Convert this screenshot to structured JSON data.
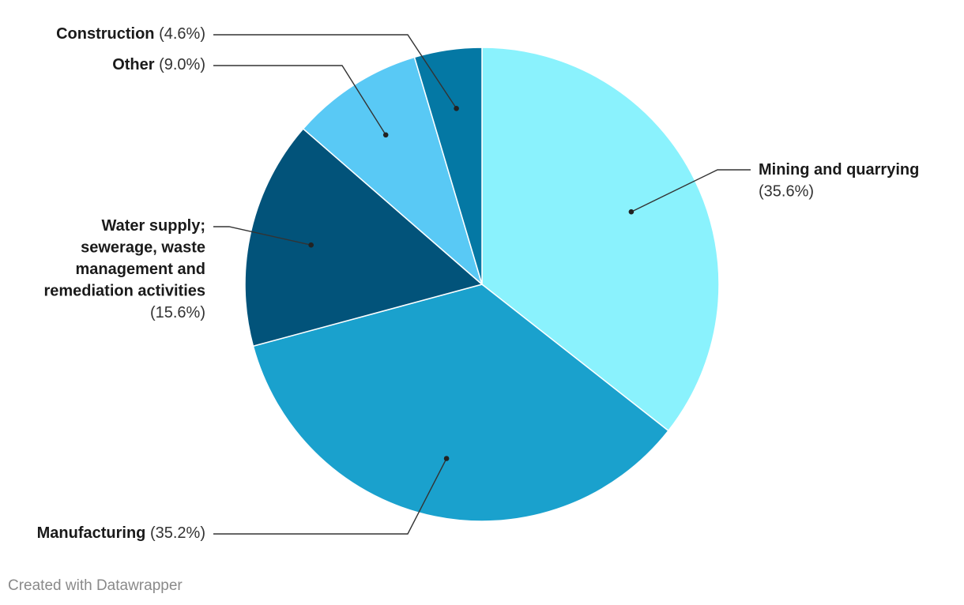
{
  "chart_data": {
    "type": "pie",
    "title": "",
    "start_angle_deg": 0,
    "direction": "clockwise",
    "slices": [
      {
        "label": "Mining and quarrying",
        "value": 35.6,
        "pct_text": "(35.6%)",
        "color": "#8af2fd"
      },
      {
        "label": "Manufacturing",
        "value": 35.2,
        "pct_text": "(35.2%)",
        "color": "#1aa1cd"
      },
      {
        "label": "Water supply; sewerage, waste management and remediation activities",
        "value": 15.6,
        "pct_text": "(15.6%)",
        "color": "#02537a"
      },
      {
        "label": "Other",
        "value": 9.0,
        "pct_text": "(9.0%)",
        "color": "#59c9f5"
      },
      {
        "label": "Construction",
        "value": 4.6,
        "pct_text": "(4.6%)",
        "color": "#0478a4"
      }
    ]
  },
  "footer": {
    "credit": "Created with Datawrapper"
  }
}
